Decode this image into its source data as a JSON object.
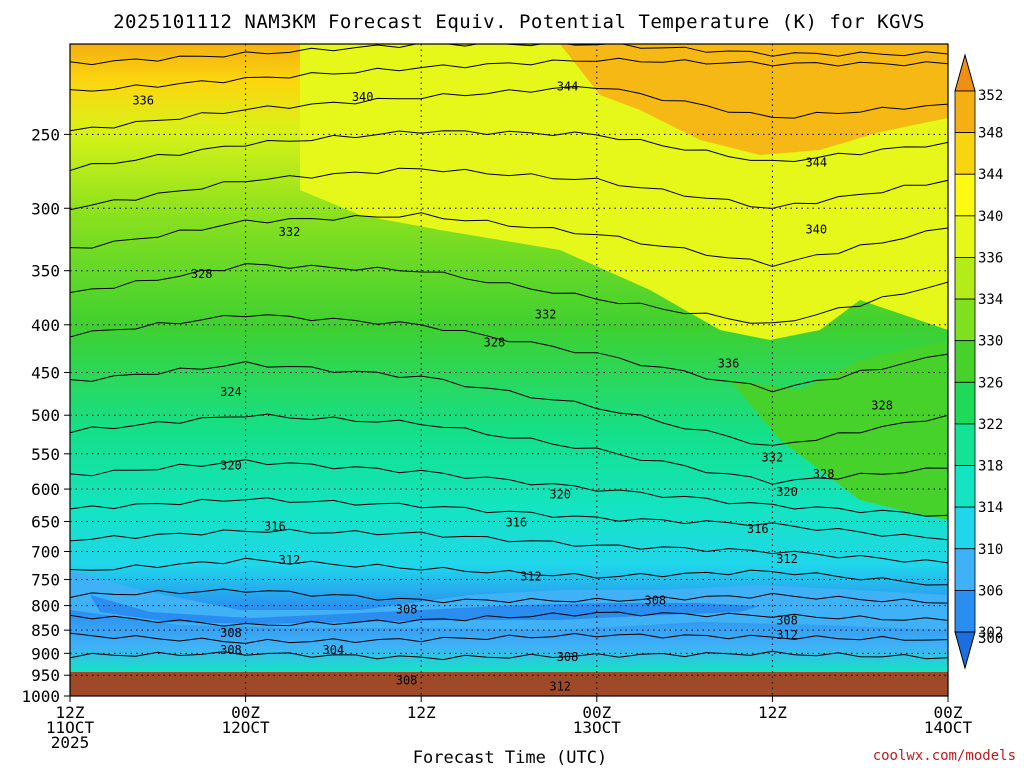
{
  "chart_data": {
    "type": "heatmap",
    "title": "2025101112 NAM3KM Forecast Equiv. Potential Temperature (K) for KGVS",
    "xlabel": "Forecast Time (UTC)",
    "ylabel": "",
    "x_ticks": [
      {
        "line1": "12Z",
        "line2": "11OCT",
        "line3": "2025",
        "hour": 0
      },
      {
        "line1": "00Z",
        "line2": "12OCT",
        "line3": "",
        "hour": 12
      },
      {
        "line1": "12Z",
        "line2": "",
        "line3": "",
        "hour": 24
      },
      {
        "line1": "00Z",
        "line2": "13OCT",
        "line3": "",
        "hour": 36
      },
      {
        "line1": "12Z",
        "line2": "",
        "line3": "",
        "hour": 48
      },
      {
        "line1": "00Z",
        "line2": "14OCT",
        "line3": "",
        "hour": 60
      }
    ],
    "xlim": [
      0,
      60
    ],
    "y_ticks": [
      250,
      300,
      350,
      400,
      450,
      500,
      550,
      600,
      650,
      700,
      750,
      800,
      850,
      900,
      950,
      1000
    ],
    "ylim": [
      1000,
      200
    ],
    "y_scale": "log",
    "grid": true,
    "colorbar": {
      "levels": [
        300,
        302,
        306,
        310,
        314,
        318,
        322,
        326,
        330,
        334,
        336,
        340,
        344,
        348,
        352
      ],
      "colors": [
        "#1a6fe0",
        "#2a8ef0",
        "#3fb2f7",
        "#20d6ea",
        "#14e4c2",
        "#14e394",
        "#1fda58",
        "#46d22a",
        "#7ee01f",
        "#b4ec1a",
        "#e6f81a",
        "#fcfa12",
        "#f8d60f",
        "#f4b012",
        "#ef9014"
      ]
    },
    "contour_labels": [
      {
        "text": "336",
        "hour": 5.0,
        "p": 230
      },
      {
        "text": "340",
        "hour": 20.0,
        "p": 228
      },
      {
        "text": "344",
        "hour": 34.0,
        "p": 222
      },
      {
        "text": "344",
        "hour": 51.0,
        "p": 268
      },
      {
        "text": "332",
        "hour": 15.0,
        "p": 318
      },
      {
        "text": "340",
        "hour": 51.0,
        "p": 316
      },
      {
        "text": "328",
        "hour": 9.0,
        "p": 353
      },
      {
        "text": "332",
        "hour": 32.5,
        "p": 390
      },
      {
        "text": "328",
        "hour": 29.0,
        "p": 418
      },
      {
        "text": "336",
        "hour": 45.0,
        "p": 440
      },
      {
        "text": "324",
        "hour": 11.0,
        "p": 472
      },
      {
        "text": "328",
        "hour": 55.5,
        "p": 488
      },
      {
        "text": "332",
        "hour": 48.0,
        "p": 555
      },
      {
        "text": "328",
        "hour": 51.5,
        "p": 578
      },
      {
        "text": "320",
        "hour": 11.0,
        "p": 566
      },
      {
        "text": "320",
        "hour": 33.5,
        "p": 608
      },
      {
        "text": "320",
        "hour": 49.0,
        "p": 604
      },
      {
        "text": "316",
        "hour": 14.0,
        "p": 658
      },
      {
        "text": "316",
        "hour": 30.5,
        "p": 652
      },
      {
        "text": "316",
        "hour": 47.0,
        "p": 662
      },
      {
        "text": "312",
        "hour": 15.0,
        "p": 715
      },
      {
        "text": "312",
        "hour": 31.5,
        "p": 745
      },
      {
        "text": "312",
        "hour": 49.0,
        "p": 713
      },
      {
        "text": "308",
        "hour": 23.0,
        "p": 808
      },
      {
        "text": "308",
        "hour": 40.0,
        "p": 790
      },
      {
        "text": "308",
        "hour": 49.0,
        "p": 830
      },
      {
        "text": "312",
        "hour": 49.0,
        "p": 860
      },
      {
        "text": "308",
        "hour": 11.0,
        "p": 856
      },
      {
        "text": "308",
        "hour": 11.0,
        "p": 893
      },
      {
        "text": "304",
        "hour": 18.0,
        "p": 893
      },
      {
        "text": "308",
        "hour": 34.0,
        "p": 908
      },
      {
        "text": "308",
        "hour": 23.0,
        "p": 962
      },
      {
        "text": "312",
        "hour": 33.5,
        "p": 977
      }
    ]
  },
  "credit": "coolwx.com/models"
}
